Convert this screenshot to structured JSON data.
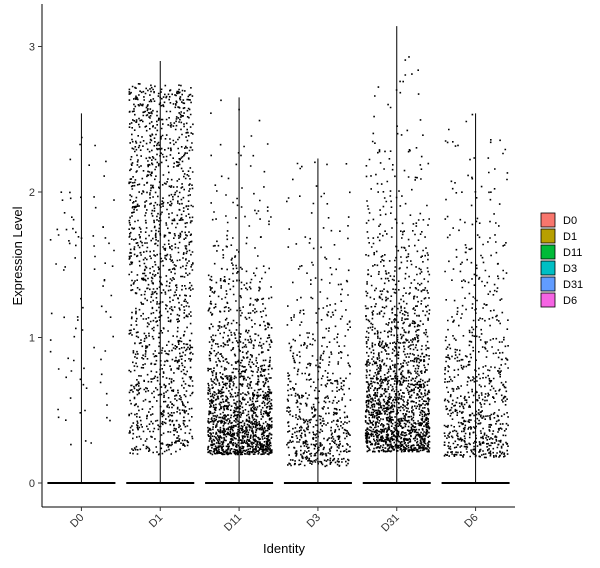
{
  "chart_data": {
    "type": "violin-jitter",
    "title": "",
    "xlabel": "Identity",
    "ylabel": "Expression Level",
    "ylim": [
      -0.15,
      3.15
    ],
    "yticks": [
      "0",
      "1",
      "2",
      "3"
    ],
    "categories": [
      "D0",
      "D1",
      "D11",
      "D3",
      "D31",
      "D6"
    ],
    "max_values": [
      2.54,
      2.9,
      2.65,
      2.23,
      3.14,
      2.54
    ],
    "point_color": "#000000",
    "legend": {
      "placement": "right",
      "items": [
        {
          "label": "D0",
          "color": "#F8766D"
        },
        {
          "label": "D1",
          "color": "#B79F00"
        },
        {
          "label": "D11",
          "color": "#00BA38"
        },
        {
          "label": "D3",
          "color": "#00BFC4"
        },
        {
          "label": "D31",
          "color": "#619CFF"
        },
        {
          "label": "D6",
          "color": "#F564E3"
        }
      ]
    }
  }
}
